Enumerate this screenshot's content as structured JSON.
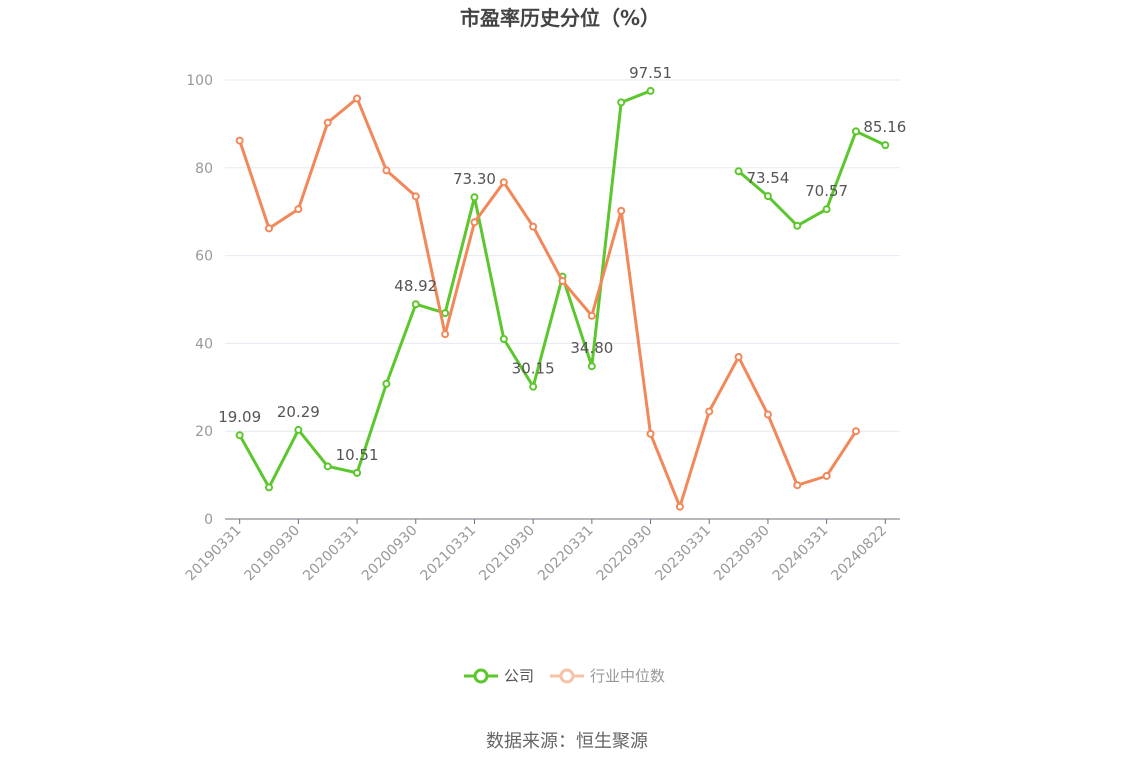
{
  "chart_data": {
    "type": "line",
    "title": "市盈率历史分位（%）",
    "x": [
      "20190331",
      "20190630",
      "20190930",
      "20191231",
      "20200331",
      "20200630",
      "20200930",
      "20201231",
      "20210331",
      "20210630",
      "20210930",
      "20211231",
      "20220331",
      "20220630",
      "20220930",
      "20221231",
      "20230331",
      "20230630",
      "20230930",
      "20231231",
      "20240331",
      "20240630",
      "20240822"
    ],
    "xtick_labels": [
      "20190331",
      "20190930",
      "20200331",
      "20200930",
      "20210331",
      "20210930",
      "20220331",
      "20220930",
      "20230331",
      "20230930",
      "20240331",
      "20240822"
    ],
    "ylim": [
      0,
      100
    ],
    "yticks": [
      0,
      20,
      40,
      60,
      80,
      100
    ],
    "grid": true,
    "legend_position": "bottom-center",
    "series": [
      {
        "name": "公司",
        "color": "#5cc72d",
        "values": [
          19.09,
          7.2,
          20.29,
          12.0,
          10.51,
          30.8,
          48.92,
          46.9,
          73.3,
          41.0,
          30.15,
          55.2,
          34.8,
          94.9,
          97.51,
          null,
          null,
          79.2,
          73.54,
          66.8,
          70.57,
          88.3,
          85.16
        ],
        "labels": {
          "0": "19.09",
          "2": "20.29",
          "4": "10.51",
          "6": "48.92",
          "8": "73.30",
          "10": "30.15",
          "12": "34.80",
          "14": "97.51",
          "18": "73.54",
          "20": "70.57",
          "22": "85.16"
        }
      },
      {
        "name": "行业中位数",
        "color": "#f2885a",
        "values": [
          86.2,
          66.2,
          70.6,
          90.3,
          95.8,
          79.4,
          73.5,
          42.1,
          67.6,
          76.7,
          66.6,
          54.2,
          46.3,
          70.2,
          19.4,
          2.8,
          24.5,
          36.9,
          23.8,
          7.7,
          9.8,
          20.0,
          null
        ],
        "labels": {}
      }
    ]
  },
  "source": "数据来源：恒生聚源"
}
